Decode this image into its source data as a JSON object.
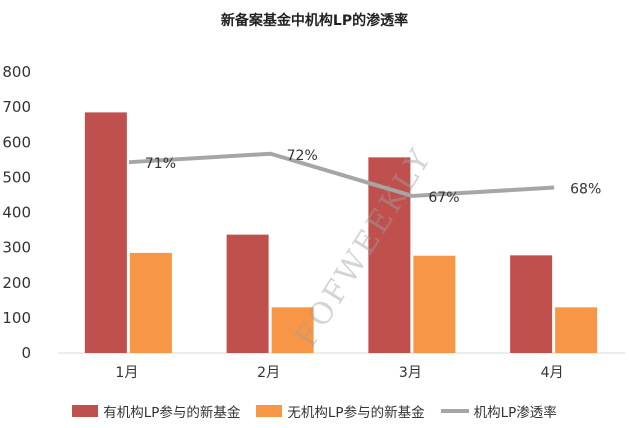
{
  "chart_data": {
    "type": "bar",
    "title": "新备案基金中机构LP的渗透率",
    "categories": [
      "1月",
      "2月",
      "3月",
      "4月"
    ],
    "series": [
      {
        "name": "有机构LP参与的新基金",
        "type": "bar",
        "values": [
          685,
          337,
          557,
          278
        ],
        "color": "#c0504d"
      },
      {
        "name": "无机构LP参与的新基金",
        "type": "bar",
        "values": [
          285,
          130,
          277,
          130
        ],
        "color": "#f79646"
      },
      {
        "name": "机构LP渗透率",
        "type": "line",
        "values": [
          71,
          72,
          67,
          68
        ],
        "labels": [
          "71%",
          "72%",
          "67%",
          "68%"
        ],
        "color": "#a6a6a6"
      }
    ],
    "y_ticks": [
      "800",
      "700",
      "600",
      "500",
      "400",
      "300",
      "200",
      "100",
      "0"
    ],
    "ylim": [
      0,
      800
    ],
    "grid": false,
    "legend_position": "bottom",
    "watermark": "FOFWEEKLY"
  }
}
